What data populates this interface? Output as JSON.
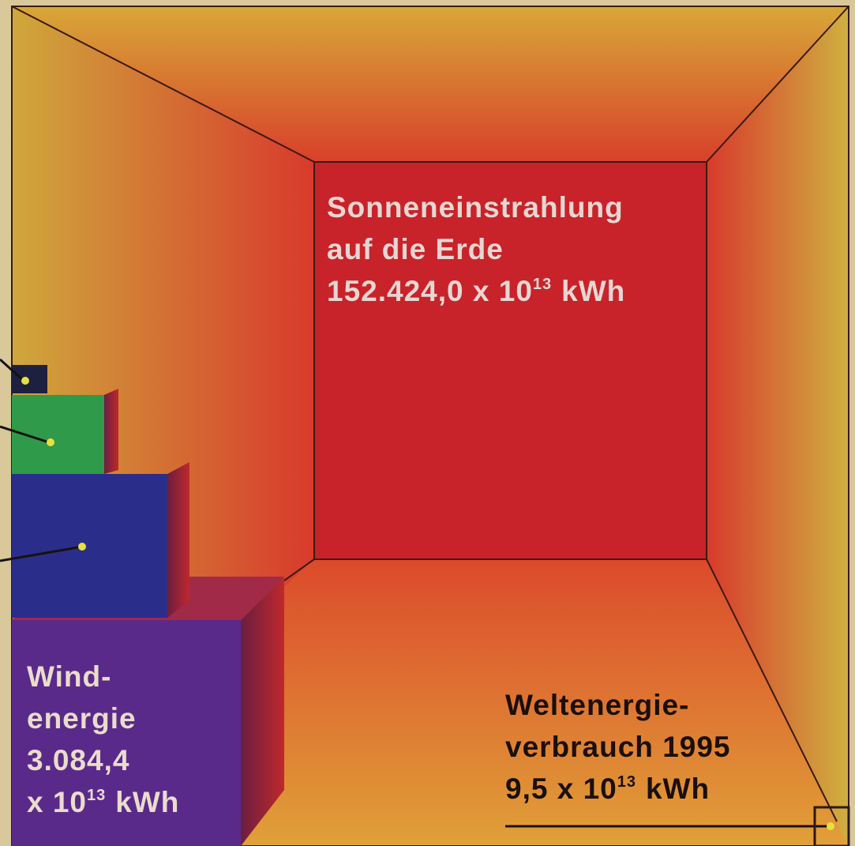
{
  "sun": {
    "lines": [
      "Sonneneinstrahlung",
      "auf die Erde"
    ],
    "value": "152.424,0 x 10",
    "exponent": "13",
    "unit": "kWh"
  },
  "wind": {
    "lines": [
      "Wind-",
      "energie",
      "3.084,4"
    ],
    "value": "x 10",
    "exponent": "13",
    "unit": "kWh"
  },
  "consumption": {
    "lines": [
      "Weltenergie-",
      "verbrauch 1995"
    ],
    "value": "9,5 x 10",
    "exponent": "13",
    "unit": "kWh"
  }
}
